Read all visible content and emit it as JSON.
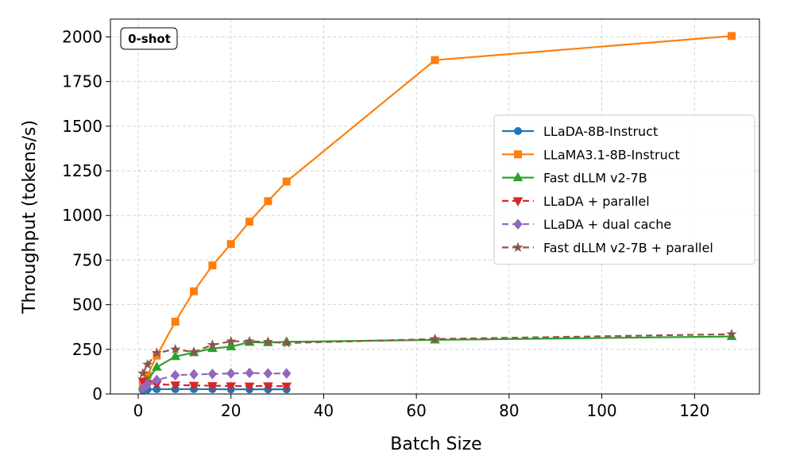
{
  "chart_data": {
    "type": "line",
    "title": "",
    "xlabel": "Batch Size",
    "ylabel": "Throughput (tokens/s)",
    "xlim": [
      -6,
      134
    ],
    "ylim": [
      0,
      2100
    ],
    "xticks": [
      0,
      20,
      40,
      60,
      80,
      100,
      120
    ],
    "yticks": [
      0,
      250,
      500,
      750,
      1000,
      1250,
      1500,
      1750,
      2000
    ],
    "grid": true,
    "legend_position": "center-right",
    "annotation": "0-shot",
    "series": [
      {
        "name": "LLaDA-8B-Instruct",
        "color": "#1f77b4",
        "marker": "circle",
        "dashed": false,
        "x": [
          1,
          2,
          4,
          8,
          12,
          16,
          20,
          24,
          28,
          32
        ],
        "y": [
          22,
          25,
          27,
          27,
          27,
          27,
          26,
          26,
          26,
          26
        ]
      },
      {
        "name": "LLaMA3.1-8B-Instruct",
        "color": "#ff7f0e",
        "marker": "square",
        "dashed": false,
        "x": [
          1,
          2,
          4,
          8,
          12,
          16,
          20,
          24,
          28,
          32,
          64,
          128
        ],
        "y": [
          55,
          105,
          215,
          405,
          575,
          720,
          840,
          965,
          1080,
          1190,
          1870,
          2005
        ]
      },
      {
        "name": "Fast dLLM v2-7B",
        "color": "#2ca02c",
        "marker": "triangle-up",
        "dashed": false,
        "x": [
          1,
          2,
          4,
          8,
          12,
          16,
          20,
          24,
          28,
          32,
          64,
          128
        ],
        "y": [
          40,
          75,
          150,
          210,
          232,
          255,
          265,
          290,
          288,
          292,
          303,
          322
        ]
      },
      {
        "name": "LLaDA + parallel",
        "color": "#d62728",
        "marker": "triangle-down",
        "dashed": true,
        "x": [
          1,
          2,
          4,
          8,
          12,
          16,
          20,
          24,
          28,
          32
        ],
        "y": [
          72,
          58,
          55,
          50,
          48,
          46,
          45,
          44,
          45,
          44
        ]
      },
      {
        "name": "LLaDA + dual cache",
        "color": "#9467bd",
        "marker": "diamond",
        "dashed": true,
        "x": [
          1,
          2,
          4,
          8,
          12,
          16,
          20,
          24,
          28,
          32
        ],
        "y": [
          30,
          55,
          78,
          105,
          110,
          112,
          115,
          118,
          115,
          115
        ]
      },
      {
        "name": "Fast dLLM v2-7B + parallel",
        "color": "#8c564b",
        "marker": "star",
        "dashed": true,
        "x": [
          1,
          2,
          4,
          8,
          12,
          16,
          20,
          24,
          28,
          32,
          64,
          128
        ],
        "y": [
          115,
          165,
          230,
          250,
          235,
          275,
          295,
          295,
          292,
          285,
          308,
          335
        ]
      }
    ]
  }
}
